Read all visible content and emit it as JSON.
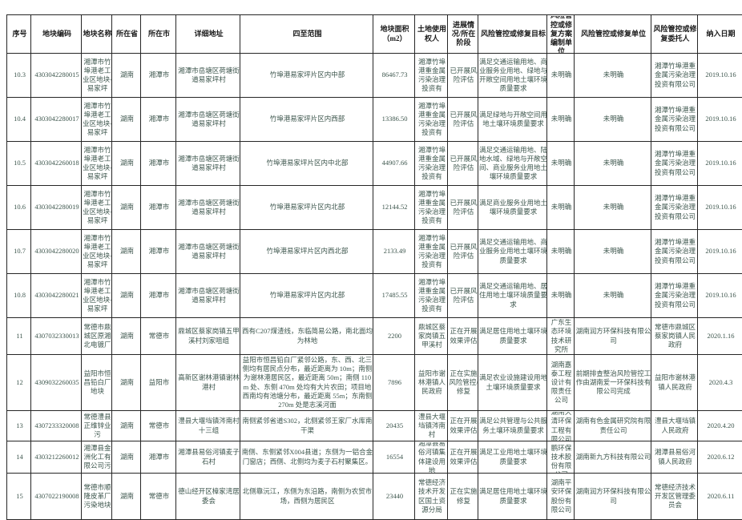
{
  "meta": {
    "background": "#ffffff",
    "border_color": "#262626",
    "header_text_color": "#1a1a1a",
    "body_text_color": "#3d564d"
  },
  "table": {
    "columns": [
      "序号",
      "地块编码",
      "地块名称",
      "所在省",
      "所在市",
      "详细地址",
      "四至范围",
      "地块面积（m2）",
      "土地使用权人",
      "进展情况/所在阶段",
      "风险管控或修复目标",
      "风险管控或修复方案编制单位",
      "风险管控或修复单位",
      "风险管控或修复委托人",
      "纳入日期"
    ],
    "rows": [
      [
        "10.3",
        "4303042280015",
        "湘潭市竹埠港老工业区地块-易家坪",
        "湖南",
        "湘潭市",
        "湘潭市岳塘区荷塘街道易家坪村",
        "竹埠港易家坪片区内中部",
        "86467.73",
        "湘潭竹埠港重金属污染治理投资有",
        "已开展风险评估",
        "满足交通运输用地、商业服务业用地、绿地与开敞空间用地土壤环境质量要求",
        "未明确",
        "未明确",
        "湘潭竹埠港重金属污染治理投资有限公司",
        "2019.10.16"
      ],
      [
        "10.4",
        "4303042280017",
        "湘潭市竹埠港老工业区地块-易家坪",
        "湖南",
        "湘潭市",
        "湘潭市岳塘区荷塘街道易家坪村",
        "竹埠港易家坪片区内西部",
        "13386.50",
        "湘潭竹埠港重金属污染治理投资有",
        "已开展风险评估",
        "满足绿地与开敞空间用地土壤环境质量要求",
        "未明确",
        "未明确",
        "湘潭竹埠港重金属污染治理投资有限公司",
        "2019.10.16"
      ],
      [
        "10.5",
        "4303042260018",
        "湘潭市竹埠港老工业区地块-易家坪",
        "湖南",
        "湘潭市",
        "湘潭市岳塘区荷塘街道易家坪村",
        "竹埠港易家坪片区内中北部",
        "44907.66",
        "湘潭竹埠港重金属污染治理投资有",
        "已开展风险评估",
        "满足交通运输用地、陆地水域、绿地与开敞空间、商业服务业用地土壤环境质量要求",
        "未明确",
        "未明确",
        "湘潭竹埠港重金属污染治理投资有限公司",
        "2019.10.16"
      ],
      [
        "10.6",
        "4303042280019",
        "湘潭市竹埠港老工业区地块-易家坪",
        "湖南",
        "湘潭市",
        "湘潭市岳塘区荷塘街道易家坪村",
        "竹埠港易家坪片区内北部",
        "12144.52",
        "湘潭竹埠港重金属污染治理投资有",
        "已开展风险评估",
        "满足商业服务业用地土壤环境质量要求",
        "未明确",
        "未明确",
        "湘潭竹埠港重金属污染治理投资有限公司",
        "2019.10.16"
      ],
      [
        "10.7",
        "4303042280020",
        "湘潭市竹埠港老工业区地块-易家坪",
        "湖南",
        "湘潭市",
        "湘潭市岳塘区荷塘街道易家坪村",
        "竹埠港易家坪片区内西北部",
        "2133.49",
        "湘潭竹埠港重金属污染治理投资有",
        "已开展风险评估",
        "满足交通运输用地、商业服务业用地土壤环境质量要求",
        "未明确",
        "未明确",
        "湘潭竹埠港重金属污染治理投资有限公司",
        "2019.10.16"
      ],
      [
        "10.8",
        "4303042280021",
        "湘潭市竹埠港老工业区地块-易家坪",
        "湖南",
        "湘潭市",
        "湘潭市岳塘区荷塘街道易家坪村",
        "竹埠港易家坪片区内北部",
        "17485.55",
        "湘潭竹埠港重金属污染治理投资有",
        "已开展风险评估",
        "满足交通运输用地、居住用地土壤环境质量要求",
        "未明确",
        "未明确",
        "湘潭竹埠港重金属污染治理投资有限公司",
        "2019.10.16"
      ],
      [
        "11",
        "4307032330013",
        "常德市鼎城区原湘北电镀厂",
        "湖南",
        "常德市",
        "鼎城区蔡家岗镇五甲溪村刘家咀组",
        "西有C207煤渣线，东临简易公路，南北面均为林地",
        "2200",
        "鼎城区蔡家岗镇五甲溪村",
        "正在开展效果评估",
        "满足居住用地土壤环境质量要求",
        "广东生态环境技术研究所",
        "湖南润方环保科技有限公司",
        "常德市鼎城区蔡家岗镇人民政府",
        "2020.1.16"
      ],
      [
        "12",
        "4309032260035",
        "益阳市恒昌铅白厂地块",
        "湖南",
        "益阳市",
        "高新区谢林港镇谢林港村",
        "益阳市恒昌铅白厂紧邻公路，东、西、北三侧均有居民点分布，最近距离为 10m；南侧为谢林港居民区，最近距离 50m；南侧 110m 处、东侧 470m 处均有大片农田；项目地西南均有池塘分布，最近距离 55m；东南侧 270m 处是志溪河面",
        "7896",
        "益阳市谢林港镇人民政府",
        "正在实施风险管控/修复",
        "满足农业设施建设用地土壤环境质量要求",
        "湖南嘉泰工程设计有限责任公司",
        "前期排查整治风险管控工作由湖南爱一环保科技有限公司完成",
        "益阳市谢林港镇人民政府",
        "2020.4.3"
      ],
      [
        "13",
        "4307233320008",
        "常德澧县正维锌业污",
        "湖南",
        "常德市",
        "澧县大堰垱镇涔南村十三组",
        "南侧紧邻省道S302，北侧紧邻王家厂水库南干渠",
        "20435",
        "澧县大堰垱镇涔南村",
        "正在开展效果评估",
        "满足公共管理与公共服务土壤环境质量要求",
        "湖南久清环保工程有限公司",
        "湖南有色金属研究院有限责任公司",
        "澧县大堰垱镇人民政府",
        "2020.4.20"
      ],
      [
        "14",
        "4303212260012",
        "湘潭县金洲化工有限公司污",
        "湖南",
        "湘潭市",
        "湘潭县易俗河镇麦子石村",
        "南侧、东侧紧邻X004县道；东侧为一铝合金门窗店；西侧、北侧均为麦子石村聚集区。",
        "16554",
        "湘潭县易俗河镇集体建设用地",
        "正在开展效果评估",
        "满足工业用地土壤环境质量要求",
        "深圳粤鹏环保技术股份有限公司",
        "湖南新九方科技有限公司",
        "湘潭县易俗河镇人民政府",
        "2020.6.12"
      ],
      [
        "15",
        "4307022190008",
        "常德市顺隆皮革厂污染地块",
        "湖南",
        "常德市",
        "德山经开区樟家湾居委会",
        "北侧靠沅江，东侧为东沿路，南侧为农贸市场，西侧为居民区",
        "23440",
        "常德经济技术开发区国土资源分局",
        "正在实施修复",
        "满足居住用地土壤环境质量要求",
        "湖南平安环保股份有限公司",
        "湖南润方环保科技有限公司",
        "常德经济技术开发区管理委员会",
        "2020.6.11"
      ]
    ]
  }
}
